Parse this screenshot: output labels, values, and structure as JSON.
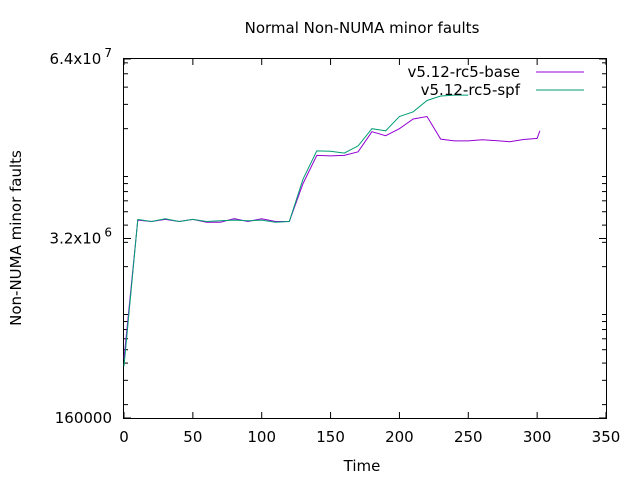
{
  "chart_data": {
    "type": "line",
    "title": "Normal Non-NUMA minor faults",
    "xlabel": "Time",
    "ylabel": "Non-NUMA minor faults",
    "xlim": [
      0,
      350
    ],
    "ylim_log10": [
      5.204,
      7.806
    ],
    "log_scale_y": true,
    "grid": false,
    "legend_position": "top-right",
    "x_ticks": [
      0,
      50,
      100,
      150,
      200,
      250,
      300,
      350
    ],
    "y_ticks": [
      {
        "label": "160000",
        "base": "",
        "exp": "",
        "value": 160000
      },
      {
        "label": "",
        "base": "3.2x10",
        "exp": "6",
        "value": 3200000
      },
      {
        "label": "",
        "base": "6.4x10",
        "exp": "7",
        "value": 64000000
      }
    ],
    "series": [
      {
        "name": "v5.12-rc5-base",
        "color": "#9400d3",
        "points": [
          [
            0,
            430000
          ],
          [
            10,
            4350000
          ],
          [
            20,
            4250000
          ],
          [
            30,
            4400000
          ],
          [
            40,
            4250000
          ],
          [
            50,
            4400000
          ],
          [
            60,
            4200000
          ],
          [
            70,
            4200000
          ],
          [
            80,
            4450000
          ],
          [
            90,
            4250000
          ],
          [
            100,
            4450000
          ],
          [
            110,
            4250000
          ],
          [
            120,
            4250000
          ],
          [
            130,
            8000000
          ],
          [
            140,
            12800000
          ],
          [
            150,
            12700000
          ],
          [
            160,
            12800000
          ],
          [
            170,
            13600000
          ],
          [
            180,
            19000000
          ],
          [
            190,
            17800000
          ],
          [
            200,
            20000000
          ],
          [
            210,
            23500000
          ],
          [
            220,
            24500000
          ],
          [
            230,
            16800000
          ],
          [
            240,
            16300000
          ],
          [
            250,
            16300000
          ],
          [
            260,
            16600000
          ],
          [
            270,
            16400000
          ],
          [
            280,
            16100000
          ],
          [
            290,
            16700000
          ],
          [
            300,
            17000000
          ],
          [
            302,
            19300000
          ]
        ]
      },
      {
        "name": "v5.12-rc5-spf",
        "color": "#009e73",
        "points": [
          [
            0,
            380000
          ],
          [
            10,
            4400000
          ],
          [
            20,
            4250000
          ],
          [
            30,
            4450000
          ],
          [
            40,
            4250000
          ],
          [
            50,
            4400000
          ],
          [
            60,
            4250000
          ],
          [
            70,
            4300000
          ],
          [
            80,
            4350000
          ],
          [
            90,
            4300000
          ],
          [
            100,
            4350000
          ],
          [
            110,
            4200000
          ],
          [
            120,
            4250000
          ],
          [
            130,
            8600000
          ],
          [
            140,
            13800000
          ],
          [
            150,
            13700000
          ],
          [
            160,
            13300000
          ],
          [
            170,
            15000000
          ],
          [
            180,
            20000000
          ],
          [
            190,
            19300000
          ],
          [
            200,
            24500000
          ],
          [
            210,
            26500000
          ],
          [
            220,
            32000000
          ],
          [
            230,
            34500000
          ],
          [
            240,
            35000000
          ],
          [
            250,
            35000000
          ]
        ]
      }
    ]
  }
}
